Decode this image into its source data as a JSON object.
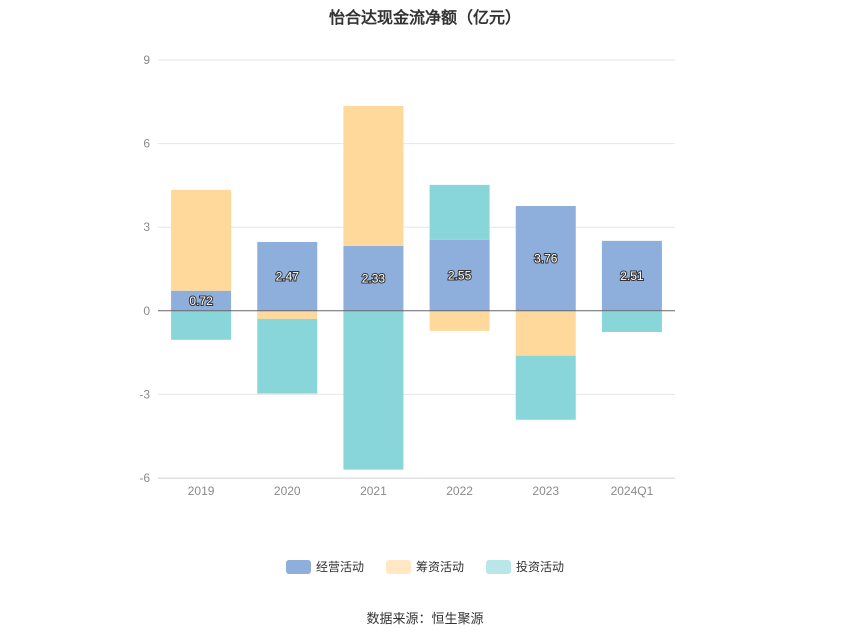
{
  "chart_data": {
    "type": "bar",
    "stacked": true,
    "title": "怡合达现金流净额（亿元）",
    "categories": [
      "2019",
      "2020",
      "2021",
      "2022",
      "2023",
      "2024Q1"
    ],
    "series": [
      {
        "name": "经营活动",
        "values": [
          0.72,
          2.47,
          2.33,
          2.55,
          3.76,
          2.51
        ],
        "color": "#8eaedb",
        "data_labels": true
      },
      {
        "name": "筹资活动",
        "values": [
          3.62,
          -0.29,
          5.02,
          -0.72,
          -1.61,
          -0.02
        ],
        "color": "#ffd99b"
      },
      {
        "name": "投资活动",
        "values": [
          -1.04,
          -2.68,
          -5.7,
          1.97,
          -2.3,
          -0.74
        ],
        "color": "#88d6da"
      }
    ],
    "ylim": [
      -6,
      9
    ],
    "yticks": [
      -6,
      -3,
      0,
      3,
      6,
      9
    ],
    "grid": true,
    "legend_position": "bottom"
  },
  "source": "数据来源：恒生聚源"
}
